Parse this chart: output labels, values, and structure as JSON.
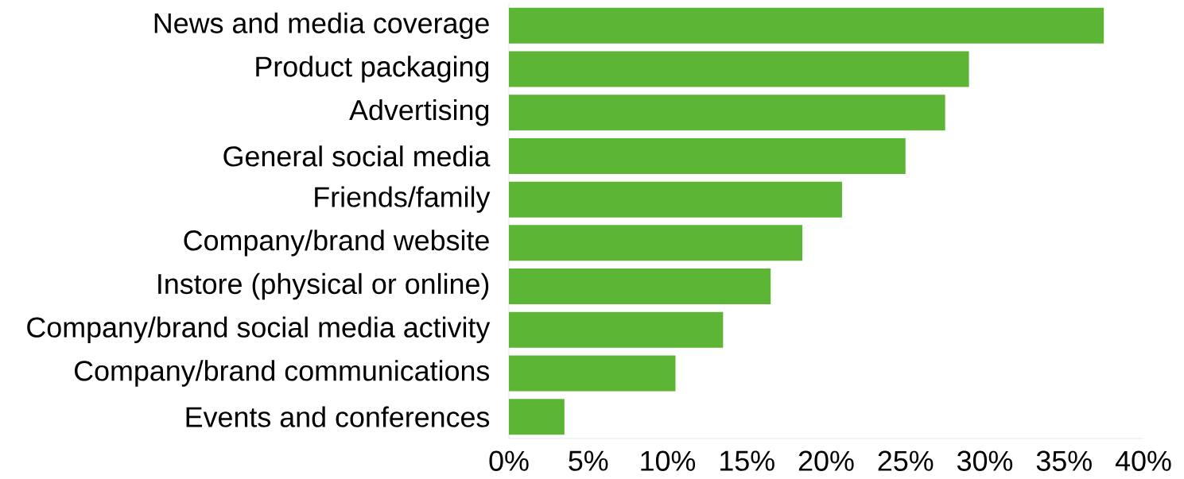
{
  "chart_data": {
    "type": "bar",
    "orientation": "horizontal",
    "categories": [
      "News and media coverage",
      "Product packaging",
      "Advertising",
      "General social media",
      "Friends/family",
      "Company/brand website",
      "Instore (physical or online)",
      "Company/brand social media activity",
      "Company/brand communications",
      "Events and conferences"
    ],
    "values": [
      37.5,
      29.0,
      27.5,
      25.0,
      21.0,
      18.5,
      16.5,
      13.5,
      10.5,
      3.5
    ],
    "color": "#5db536",
    "xlim": [
      0,
      40
    ],
    "xticks": [
      {
        "value": 0,
        "label": "0%"
      },
      {
        "value": 5,
        "label": "5%"
      },
      {
        "value": 10,
        "label": "10%"
      },
      {
        "value": 15,
        "label": "15%"
      },
      {
        "value": 20,
        "label": "20%"
      },
      {
        "value": 25,
        "label": "25%"
      },
      {
        "value": 30,
        "label": "30%"
      },
      {
        "value": 35,
        "label": "35%"
      },
      {
        "value": 40,
        "label": "40%"
      }
    ],
    "grid": false
  }
}
